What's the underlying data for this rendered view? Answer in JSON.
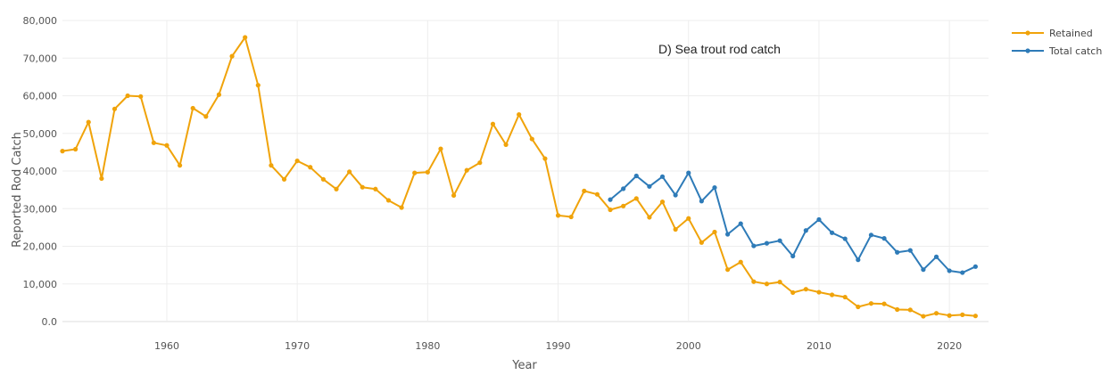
{
  "chart_data": {
    "type": "line",
    "annotation": "D) Sea trout rod catch",
    "xlabel": "Year",
    "ylabel": "Reported Rod Catch",
    "xlim": [
      1952,
      2023
    ],
    "ylim": [
      0,
      80000
    ],
    "x_ticks": [
      1960,
      1970,
      1980,
      1990,
      2000,
      2010,
      2020
    ],
    "x_tick_labels": [
      "1960",
      "1970",
      "1980",
      "1990",
      "2000",
      "2010",
      "2020"
    ],
    "y_ticks": [
      0,
      10000,
      20000,
      30000,
      40000,
      50000,
      60000,
      70000,
      80000
    ],
    "y_tick_labels": [
      "0.0",
      "10,000",
      "20,000",
      "30,000",
      "40,000",
      "50,000",
      "60,000",
      "70,000",
      "80,000"
    ],
    "grid": true,
    "legend_position": "top-right",
    "series": [
      {
        "name": "Retained",
        "color": "#f0a30a",
        "x": [
          1952,
          1953,
          1954,
          1955,
          1956,
          1957,
          1958,
          1959,
          1960,
          1961,
          1962,
          1963,
          1964,
          1965,
          1966,
          1967,
          1968,
          1969,
          1970,
          1971,
          1972,
          1973,
          1974,
          1975,
          1976,
          1977,
          1978,
          1979,
          1980,
          1981,
          1982,
          1983,
          1984,
          1985,
          1986,
          1987,
          1988,
          1989,
          1990,
          1991,
          1992,
          1993,
          1994,
          1995,
          1996,
          1997,
          1998,
          1999,
          2000,
          2001,
          2002,
          2003,
          2004,
          2005,
          2006,
          2007,
          2008,
          2009,
          2010,
          2011,
          2012,
          2013,
          2014,
          2015,
          2016,
          2017,
          2018,
          2019,
          2020,
          2021,
          2022
        ],
        "values": [
          45300,
          45800,
          53000,
          38000,
          56500,
          60000,
          59800,
          47500,
          46800,
          41500,
          56700,
          54500,
          60300,
          70500,
          75500,
          62800,
          41500,
          37800,
          42700,
          41000,
          37800,
          35200,
          39800,
          35700,
          35200,
          32200,
          30300,
          39500,
          39700,
          45900,
          33500,
          40200,
          42200,
          52500,
          47000,
          55000,
          48500,
          43300,
          28200,
          27800,
          34700,
          33800,
          29700,
          30700,
          32700,
          27700,
          31800,
          24500,
          27400,
          21000,
          23800,
          13800,
          15800,
          10600,
          10000,
          10500,
          7700,
          8600,
          7800,
          7100,
          6500,
          3900,
          4800,
          4700,
          3200,
          3100,
          1400,
          2200,
          1600,
          1800,
          1500
        ]
      },
      {
        "name": "Total catch",
        "color": "#2e7bb8",
        "x": [
          1994,
          1995,
          1996,
          1997,
          1998,
          1999,
          2000,
          2001,
          2002,
          2003,
          2004,
          2005,
          2006,
          2007,
          2008,
          2009,
          2010,
          2011,
          2012,
          2013,
          2014,
          2015,
          2016,
          2017,
          2018,
          2019,
          2020,
          2021,
          2022
        ],
        "values": [
          32400,
          35300,
          38700,
          35900,
          38500,
          33600,
          39500,
          32000,
          35600,
          23200,
          26000,
          20100,
          20800,
          21500,
          17400,
          24200,
          27100,
          23600,
          22000,
          16400,
          23000,
          22100,
          18400,
          18900,
          13800,
          17200,
          13500,
          13000,
          14600
        ]
      }
    ]
  }
}
